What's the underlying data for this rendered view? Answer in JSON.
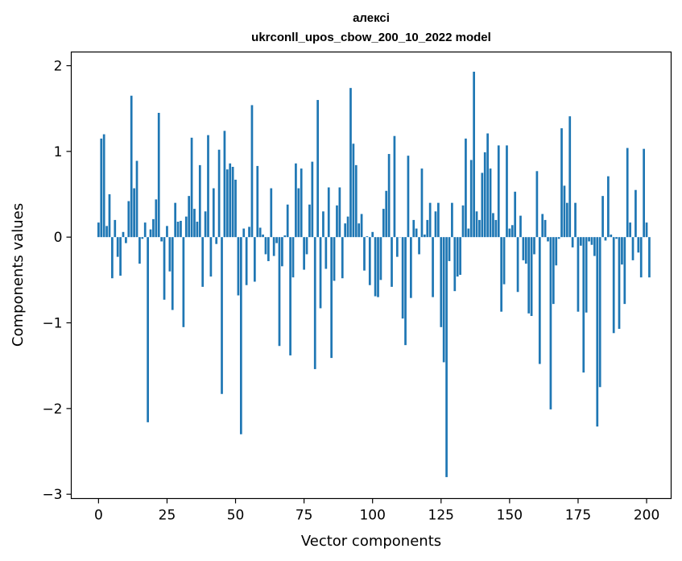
{
  "chart_data": {
    "type": "bar",
    "title": "алексі",
    "subtitle": "ukrconll_upos_cbow_200_10_2022 model",
    "xlabel": "Vector components",
    "ylabel": "Components values",
    "xlim": [
      -9.95,
      208.95
    ],
    "ylim": [
      -3.05,
      2.16
    ],
    "xticks": [
      0,
      25,
      50,
      75,
      100,
      125,
      150,
      175,
      200
    ],
    "yticks": [
      -3,
      -2,
      -1,
      0,
      1,
      2
    ],
    "ytick_labels": [
      "−3",
      "−2",
      "−1",
      "0",
      "1",
      "2"
    ],
    "bar_color": "#1f77b4",
    "grid": false,
    "values": [
      0.17,
      1.15,
      1.2,
      0.13,
      0.5,
      -0.48,
      0.2,
      -0.23,
      -0.45,
      0.06,
      -0.07,
      0.42,
      1.65,
      0.57,
      0.89,
      -0.31,
      -0.02,
      0.17,
      -2.16,
      0.09,
      0.21,
      0.44,
      1.45,
      -0.05,
      -0.73,
      0.13,
      -0.4,
      -0.85,
      0.4,
      0.18,
      0.19,
      -1.05,
      0.24,
      0.48,
      1.16,
      0.33,
      0.18,
      0.84,
      -0.58,
      0.3,
      1.19,
      -0.46,
      0.57,
      -0.08,
      1.02,
      -1.83,
      1.24,
      0.79,
      0.86,
      0.82,
      0.67,
      -0.68,
      -2.3,
      0.1,
      -0.56,
      0.12,
      1.54,
      -0.52,
      0.83,
      0.11,
      0.03,
      -0.2,
      -0.28,
      0.57,
      -0.22,
      -0.07,
      -1.27,
      -0.34,
      0.02,
      0.38,
      -1.38,
      -0.47,
      0.86,
      0.57,
      0.8,
      -0.38,
      -0.2,
      0.38,
      0.88,
      -1.54,
      1.6,
      -0.83,
      0.3,
      -0.37,
      0.58,
      -1.41,
      -0.51,
      0.37,
      0.58,
      -0.48,
      0.16,
      0.24,
      1.74,
      1.09,
      0.84,
      0.16,
      0.27,
      -0.39,
      0.01,
      -0.56,
      0.06,
      -0.69,
      -0.7,
      -0.5,
      0.33,
      0.54,
      0.97,
      -0.58,
      1.18,
      -0.23,
      0.0,
      -0.95,
      -1.26,
      0.95,
      -0.71,
      0.2,
      0.1,
      -0.2,
      0.8,
      0.03,
      0.2,
      0.4,
      -0.7,
      0.3,
      0.4,
      -1.05,
      -1.46,
      -2.8,
      -0.28,
      0.4,
      -0.63,
      -0.46,
      -0.44,
      0.37,
      1.15,
      0.1,
      0.9,
      1.93,
      0.3,
      0.2,
      0.75,
      0.99,
      1.21,
      0.8,
      0.28,
      0.2,
      1.07,
      -0.87,
      -0.55,
      1.07,
      0.1,
      0.14,
      0.53,
      -0.64,
      0.25,
      -0.27,
      -0.31,
      -0.89,
      -0.92,
      -0.2,
      0.77,
      -1.48,
      0.27,
      0.2,
      -0.05,
      -2.01,
      -0.78,
      -0.33,
      -0.02,
      1.27,
      0.6,
      0.4,
      1.41,
      -0.12,
      0.4,
      -0.87,
      -0.1,
      -1.58,
      -0.88,
      -0.05,
      -0.09,
      -0.22,
      -2.21,
      -1.75,
      0.48,
      -0.04,
      0.71,
      0.03,
      -1.12,
      -0.02,
      -1.07,
      -0.32,
      -0.78,
      1.04,
      0.17,
      -0.27,
      0.55,
      -0.18,
      -0.47,
      1.03,
      0.17,
      -0.47
    ]
  }
}
